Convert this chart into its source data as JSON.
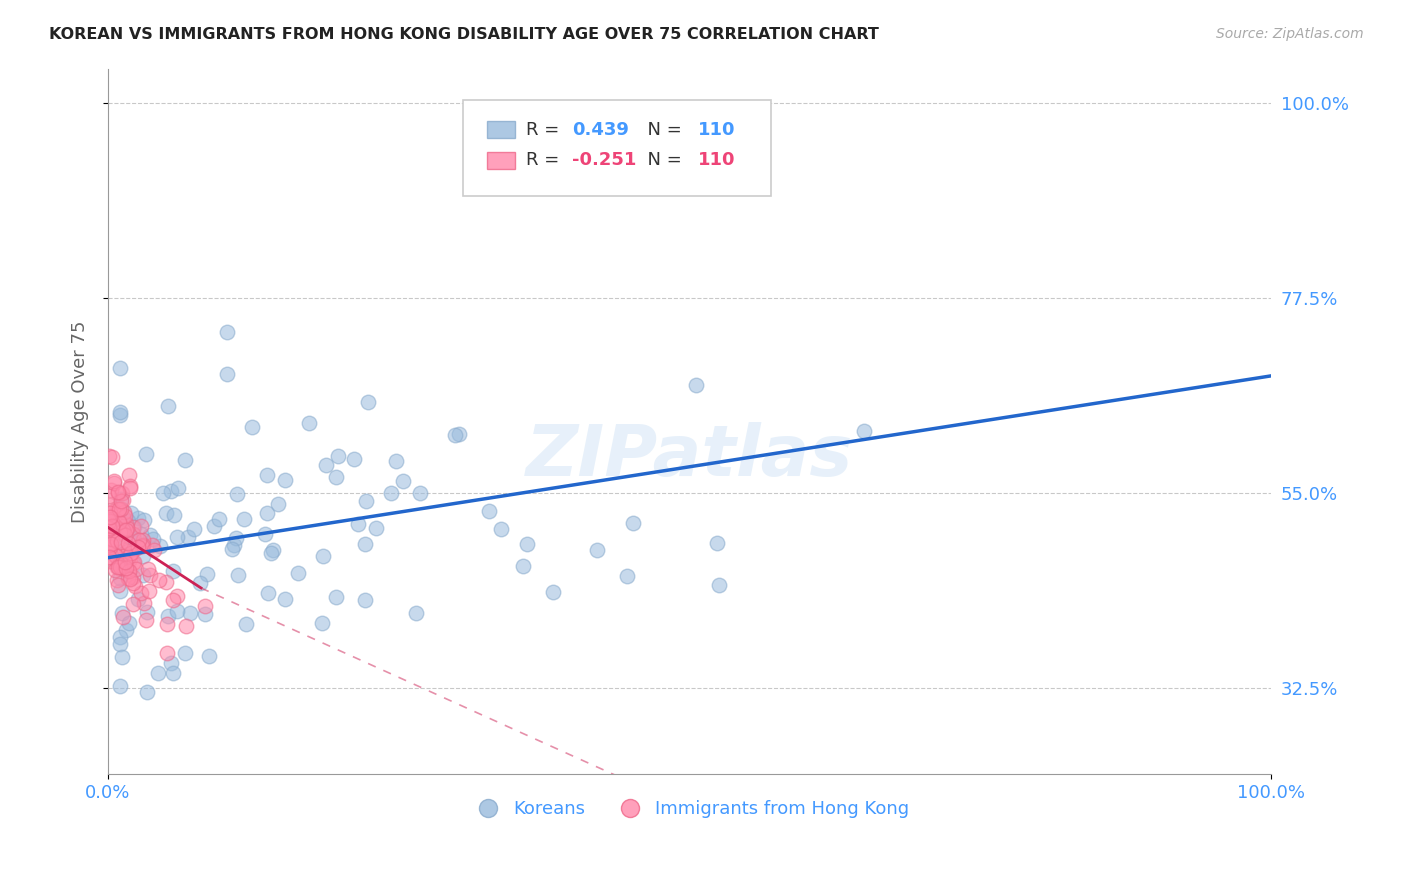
{
  "title": "KOREAN VS IMMIGRANTS FROM HONG KONG DISABILITY AGE OVER 75 CORRELATION CHART",
  "source": "Source: ZipAtlas.com",
  "ylabel_label": "Disability Age Over 75",
  "legend_label1": "Koreans",
  "legend_label2": "Immigrants from Hong Kong",
  "r1": 0.439,
  "n1": 110,
  "r2": -0.251,
  "n2": 110,
  "watermark": "ZIPatlas",
  "blue_color": "#99bbdd",
  "blue_edge_color": "#88aacc",
  "pink_color": "#ff88aa",
  "pink_edge_color": "#ee6688",
  "blue_line_color": "#2266cc",
  "pink_line_color": "#cc2255",
  "tick_label_color": "#4499ff",
  "background_color": "#ffffff",
  "grid_color": "#bbbbbb",
  "xmin": 0.0,
  "xmax": 1.0,
  "ymin": 0.225,
  "ymax": 1.04,
  "yticks": [
    0.325,
    0.55,
    0.775,
    1.0
  ],
  "ytick_labels": [
    "32.5%",
    "55.0%",
    "77.5%",
    "100.0%"
  ],
  "xticks": [
    0.0,
    1.0
  ],
  "xtick_labels": [
    "0.0%",
    "100.0%"
  ]
}
